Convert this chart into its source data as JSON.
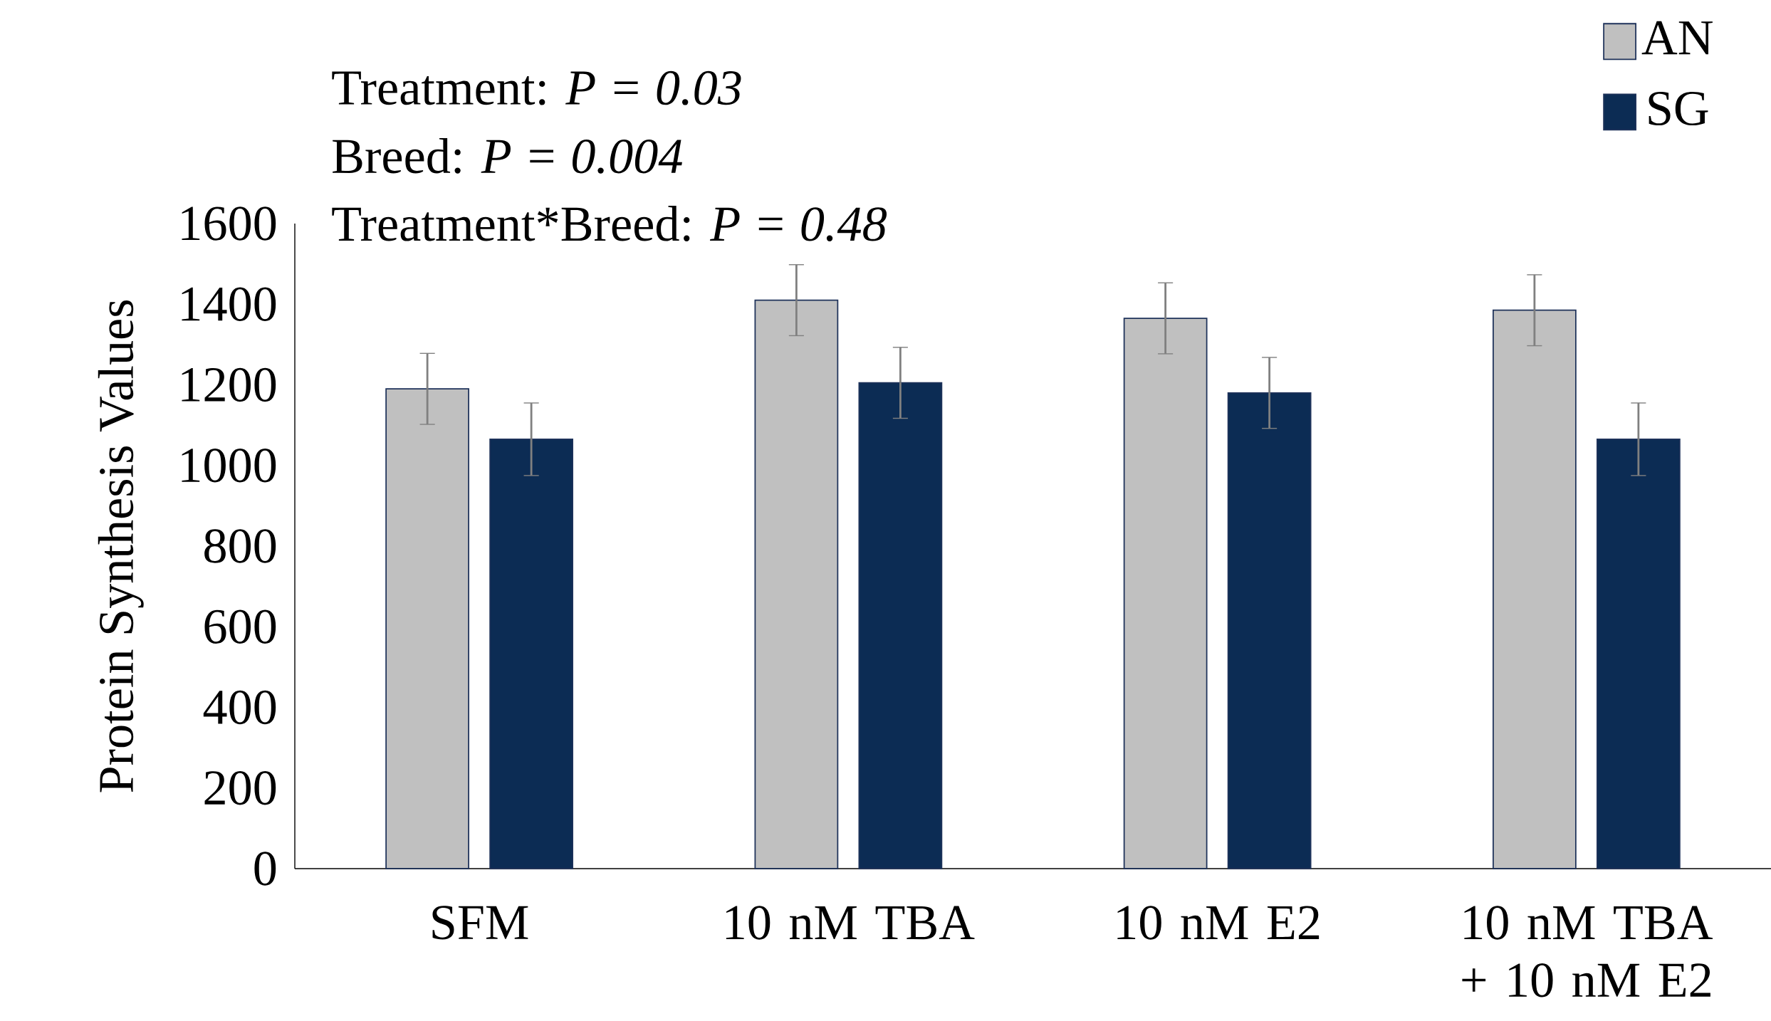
{
  "chart_data": {
    "type": "bar",
    "ylabel": "Protein Synthesis Values",
    "categories": [
      "SFM",
      "10 nM TBA",
      "10 nM E2",
      "10 nM TBA + 10 nM E2"
    ],
    "series": [
      {
        "name": "AN",
        "color": "#c0c0c0",
        "values": [
          1190,
          1410,
          1365,
          1385
        ],
        "errors": [
          88,
          88,
          88,
          88
        ]
      },
      {
        "name": "SG",
        "color": "#0c2c54",
        "values": [
          1065,
          1205,
          1180,
          1065
        ],
        "errors": [
          90,
          88,
          88,
          90
        ]
      }
    ],
    "ylim": [
      0,
      1600
    ],
    "yticks": [
      0,
      200,
      400,
      600,
      800,
      1000,
      1200,
      1400,
      1600
    ],
    "legend": "top right",
    "grid": false,
    "annotations": [
      "Treatment: *P = 0.03*",
      "Breed: *P = 0.004*",
      "Treatment*Breed: *P = 0.48*"
    ]
  }
}
